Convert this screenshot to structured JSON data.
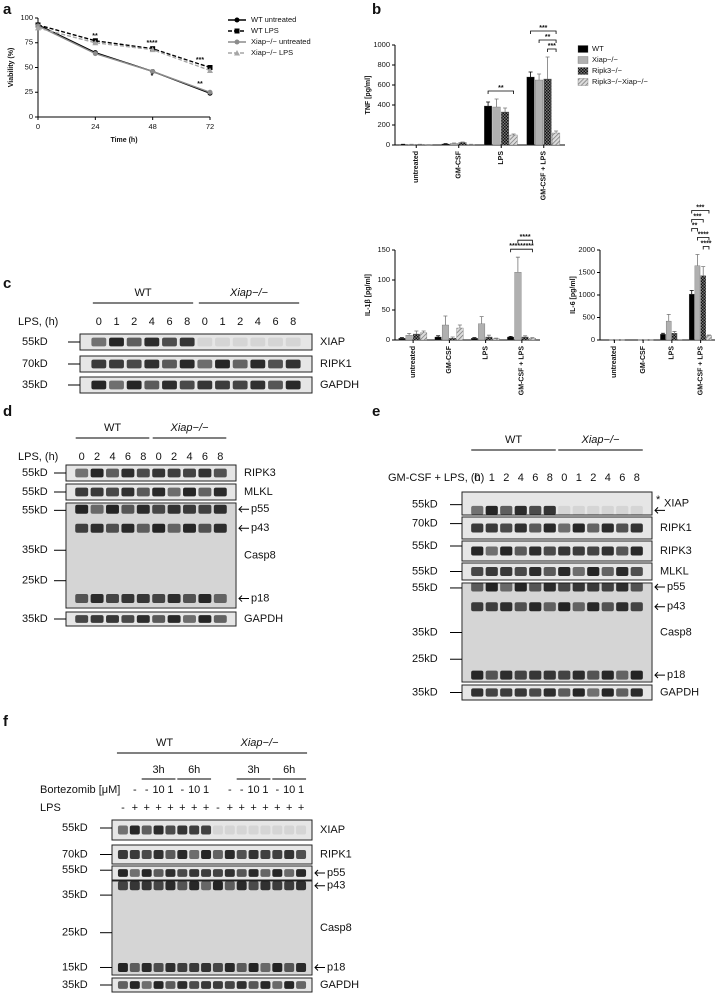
{
  "panels": [
    "a",
    "b",
    "c",
    "d",
    "e",
    "f"
  ],
  "chart_data": [
    {
      "type": "line",
      "xlabel": "Time (h)",
      "ylabel": "Viability (%)",
      "x": [
        0,
        24,
        48,
        72
      ],
      "xlim": [
        0,
        72
      ],
      "xticks": [
        0,
        24,
        48,
        72
      ],
      "ylim": [
        0,
        100
      ],
      "yticks": [
        0,
        25,
        50,
        75,
        100
      ],
      "legend": "right",
      "series": [
        {
          "name": "WT untreated",
          "color": "#000000",
          "dash": false,
          "marker": "circle",
          "values": [
            93,
            65,
            46,
            24
          ]
        },
        {
          "name": "WT LPS",
          "color": "#000000",
          "dash": true,
          "marker": "square",
          "values": [
            93,
            77,
            69,
            50
          ]
        },
        {
          "name": "Xiap−/− untreated",
          "color": "#8c8c8c",
          "dash": false,
          "marker": "circle",
          "values": [
            92,
            64,
            46,
            25
          ]
        },
        {
          "name": "Xiap−/− LPS",
          "color": "#a6a6a6",
          "dash": true,
          "marker": "triangle",
          "values": [
            90,
            75,
            68,
            47
          ]
        }
      ],
      "annotations": [
        "**",
        "****",
        "***",
        "*",
        "**"
      ]
    },
    {
      "type": "bar",
      "ylabel": "TNF [pg/ml]",
      "categories": [
        "untreated",
        "GM-CSF",
        "LPS",
        "GM-CSF + LPS"
      ],
      "ylim": [
        0,
        1000
      ],
      "yticks": [
        0,
        200,
        400,
        600,
        800,
        1000
      ],
      "legend": "right",
      "series": [
        {
          "name": "WT",
          "color": "#000000",
          "values": [
            5,
            10,
            390,
            680
          ],
          "errors": [
            2,
            3,
            40,
            50
          ]
        },
        {
          "name": "Xiap−/−",
          "color": "#b0b0b0",
          "values": [
            5,
            15,
            380,
            650
          ],
          "errors": [
            2,
            5,
            80,
            60
          ]
        },
        {
          "name": "Ripk3−/−",
          "color": "#333333",
          "pattern": "checker",
          "values": [
            5,
            25,
            330,
            660
          ],
          "errors": [
            2,
            5,
            40,
            220
          ]
        },
        {
          "name": "Ripk3−/−Xiap−/−",
          "color": "#888888",
          "pattern": "hatch",
          "values": [
            2,
            5,
            100,
            120
          ],
          "errors": [
            1,
            2,
            10,
            20
          ]
        }
      ],
      "annotations": [
        "**",
        "***",
        "**",
        "***"
      ]
    },
    {
      "type": "bar",
      "ylabel": "IL-1β [pg/ml]",
      "categories": [
        "untreated",
        "GM-CSF",
        "LPS",
        "GM-CSF + LPS"
      ],
      "ylim": [
        0,
        150
      ],
      "yticks": [
        0,
        50,
        100,
        150
      ],
      "series": [
        {
          "name": "WT",
          "color": "#000000",
          "values": [
            3,
            5,
            3,
            5
          ],
          "errors": [
            1,
            2,
            1,
            1
          ]
        },
        {
          "name": "Xiap−/−",
          "color": "#b0b0b0",
          "values": [
            8,
            25,
            27,
            113
          ],
          "errors": [
            3,
            15,
            12,
            25
          ]
        },
        {
          "name": "Ripk3−/−",
          "color": "#333333",
          "pattern": "checker",
          "values": [
            10,
            3,
            5,
            5
          ],
          "errors": [
            5,
            2,
            3,
            2
          ]
        },
        {
          "name": "Ripk3−/−Xiap−/−",
          "color": "#888888",
          "pattern": "hatch",
          "values": [
            12,
            20,
            2,
            3
          ],
          "errors": [
            3,
            5,
            1,
            1
          ]
        }
      ],
      "annotations": [
        "****",
        "*********"
      ]
    },
    {
      "type": "bar",
      "ylabel": "IL-6 [pg/ml]",
      "categories": [
        "untreated",
        "GM-CSF",
        "LPS",
        "GM-CSF + LPS"
      ],
      "ylim": [
        0,
        2000
      ],
      "yticks": [
        0,
        500,
        1000,
        1500,
        2000
      ],
      "series": [
        {
          "name": "WT",
          "color": "#000000",
          "values": [
            0,
            0,
            130,
            1020
          ],
          "errors": [
            0,
            0,
            20,
            80
          ]
        },
        {
          "name": "Xiap−/−",
          "color": "#b0b0b0",
          "values": [
            0,
            0,
            420,
            1650
          ],
          "errors": [
            0,
            0,
            150,
            250
          ]
        },
        {
          "name": "Ripk3−/−",
          "color": "#333333",
          "pattern": "checker",
          "values": [
            0,
            0,
            150,
            1430
          ],
          "errors": [
            0,
            0,
            40,
            200
          ]
        },
        {
          "name": "Ripk3−/−Xiap−/−",
          "color": "#888888",
          "pattern": "hatch",
          "values": [
            0,
            0,
            0,
            100
          ],
          "errors": [
            0,
            0,
            5,
            10
          ]
        }
      ],
      "annotations": [
        "***",
        "***",
        "**",
        "****",
        "****"
      ]
    }
  ],
  "blots": {
    "c": {
      "groups": [
        "WT",
        "Xiap−/−"
      ],
      "treatments": [
        {
          "name": "LPS, (h)",
          "values": [
            "0",
            "1",
            "2",
            "4",
            "6",
            "8",
            "0",
            "1",
            "2",
            "4",
            "6",
            "8"
          ]
        }
      ],
      "rows": [
        {
          "label": "XIAP",
          "markers": [
            "55kD"
          ]
        },
        {
          "label": "RIPK1",
          "markers": [
            "70kD"
          ]
        },
        {
          "label": "GAPDH",
          "markers": [
            "35kD"
          ]
        }
      ]
    },
    "d": {
      "groups": [
        "WT",
        "Xiap−/−"
      ],
      "treatments": [
        {
          "name": "LPS, (h)",
          "values": [
            "0",
            "2",
            "4",
            "6",
            "8",
            "0",
            "2",
            "4",
            "6",
            "8"
          ]
        }
      ],
      "rows": [
        {
          "label": "RIPK3",
          "markers": [
            "55kD"
          ]
        },
        {
          "label": "MLKL",
          "markers": [
            "55kD"
          ]
        },
        {
          "label": "Casp8",
          "markers": [
            "55kD",
            "35kD",
            "25kD"
          ],
          "arrows": [
            "p55",
            "p43",
            "p18"
          ]
        },
        {
          "label": "GAPDH",
          "markers": [
            "35kD"
          ]
        }
      ]
    },
    "e": {
      "groups": [
        "WT",
        "Xiap−/−"
      ],
      "treatments": [
        {
          "name": "GM-CSF + LPS, (h)",
          "values": [
            "0",
            "1",
            "2",
            "4",
            "6",
            "8",
            "0",
            "1",
            "2",
            "4",
            "6",
            "8"
          ]
        }
      ],
      "rows": [
        {
          "label": "XIAP",
          "star": "*",
          "markers": [
            "55kD"
          ],
          "arrows": [
            null
          ]
        },
        {
          "label": "RIPK1",
          "markers": [
            "70kD"
          ]
        },
        {
          "label": "RIPK3",
          "markers": [
            "55kD"
          ]
        },
        {
          "label": "MLKL",
          "markers": [
            "55kD"
          ]
        },
        {
          "label": "Casp8",
          "markers": [
            "55kD",
            "35kD",
            "25kD"
          ],
          "arrows": [
            "p55",
            "p43",
            "p18"
          ]
        },
        {
          "label": "GAPDH",
          "markers": [
            "35kD"
          ]
        }
      ]
    },
    "f": {
      "groups": [
        "WT",
        "Xiap−/−"
      ],
      "subgroups": [
        "3h",
        "6h",
        "3h",
        "6h"
      ],
      "treatments": [
        {
          "name": "Bortezomib [μM]",
          "values": [
            null,
            "-",
            "-",
            "10",
            "1",
            "-",
            "10",
            "1",
            null,
            "-",
            "-",
            "10",
            "1",
            "-",
            "10",
            "1"
          ]
        },
        {
          "name": "LPS",
          "values": [
            "-",
            "+",
            "+",
            "+",
            "+",
            "+",
            "+",
            "+",
            "-",
            "+",
            "+",
            "+",
            "+",
            "+",
            "+",
            "+"
          ]
        }
      ],
      "rows": [
        {
          "label": "XIAP",
          "markers": [
            "55kD"
          ]
        },
        {
          "label": "RIPK1",
          "markers": [
            "70kD"
          ]
        },
        {
          "markers": [
            "55kD"
          ],
          "arrows": [
            "p55"
          ]
        },
        {
          "label": "Casp8",
          "markers": [
            "35kD",
            "25kD",
            "15kD"
          ],
          "arrows": [
            "p43",
            "p18"
          ]
        },
        {
          "label": "GAPDH",
          "markers": [
            "35kD"
          ]
        }
      ]
    }
  }
}
